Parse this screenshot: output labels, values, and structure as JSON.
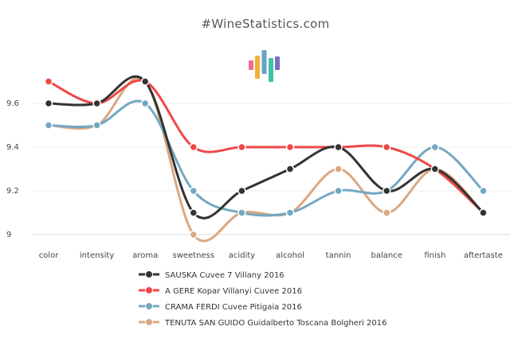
{
  "site_title": "#WineStatistics.com",
  "chart_data": {
    "type": "line",
    "title": "#WineStatistics.com",
    "xlabel": "",
    "ylabel": "",
    "ylim": [
      9.0,
      9.78
    ],
    "yticks": [
      9,
      9.2,
      9.4,
      9.6
    ],
    "ytick_labels": [
      "9",
      "9.2",
      "9.4",
      "9.6"
    ],
    "grid": true,
    "legend_position": "bottom",
    "categories": [
      "color",
      "intensity",
      "aroma",
      "sweetness",
      "acidity",
      "alcohol",
      "tannin",
      "balance",
      "finish",
      "aftertaste"
    ],
    "series": [
      {
        "name": "SAUSKA Cuvee 7 Villany 2016",
        "color": "#333333",
        "values": [
          9.6,
          9.6,
          9.7,
          9.1,
          9.2,
          9.3,
          9.4,
          9.2,
          9.3,
          9.1
        ]
      },
      {
        "name": "A GERE Kopar Villanyi Cuvee 2016",
        "color": "#f04747",
        "values": [
          9.7,
          9.6,
          9.7,
          9.4,
          9.4,
          9.4,
          9.4,
          9.4,
          9.3,
          9.1
        ]
      },
      {
        "name": "CRAMA FERDI Cuvee Pitigaia 2016",
        "color": "#73a8c2",
        "values": [
          9.5,
          9.5,
          9.6,
          9.2,
          9.1,
          9.1,
          9.2,
          9.2,
          9.4,
          9.2
        ]
      },
      {
        "name": "TENUTA SAN GUIDO Guidalberto Toscana Bolgheri 2016",
        "color": "#dba882",
        "values": [
          9.5,
          9.5,
          9.7,
          9.0,
          9.1,
          9.1,
          9.3,
          9.1,
          9.3,
          9.1
        ]
      }
    ]
  },
  "logo_colors": [
    "#f06b8a",
    "#f2b134",
    "#6aa3c9",
    "#3cc4a6",
    "#7a6fc4"
  ]
}
